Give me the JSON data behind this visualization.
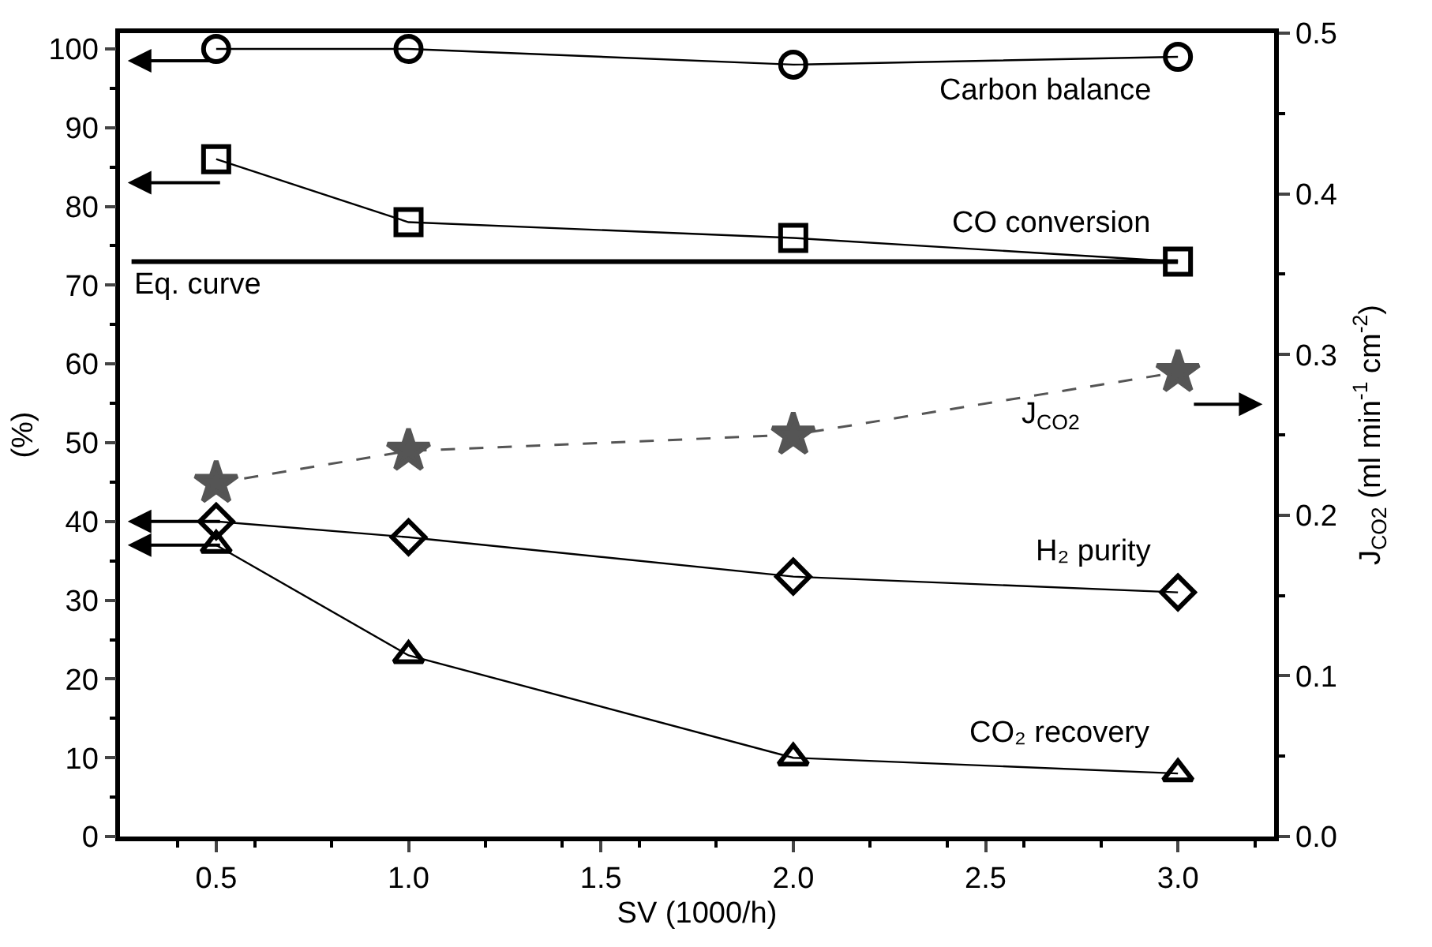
{
  "chart_data": {
    "type": "line",
    "xlabel": "SV (1000/h)",
    "ylabel": "(%)",
    "y2label": "J$_{CO2}$ (ml min$^{-1}$ cm$^{-2}$)",
    "x": [
      0.5,
      1.0,
      2.0,
      3.0
    ],
    "series": [
      {
        "name": "Carbon balance",
        "color": "#000000",
        "marker": "circle",
        "line_style": "solid",
        "values": [
          100,
          100,
          98,
          99
        ]
      },
      {
        "name": "CO conversion",
        "color": "#000000",
        "marker": "square",
        "line_style": "solid",
        "values": [
          86,
          78,
          76,
          73
        ]
      },
      {
        "name": "J$_{CO2}$",
        "color": "#555555",
        "marker": "star",
        "line_style": "dashed",
        "axis": "y2",
        "values": [
          0.22,
          0.24,
          0.25,
          0.289
        ]
      },
      {
        "name": "H₂ purity",
        "color": "#000000",
        "marker": "diamond",
        "line_style": "solid",
        "values": [
          40,
          38,
          33,
          31
        ]
      },
      {
        "name": "CO₂ recovery",
        "color": "#000000",
        "marker": "triangle",
        "line_style": "solid",
        "values": [
          37,
          23,
          10,
          8
        ]
      }
    ],
    "ref_lines": [
      {
        "axis": "y",
        "value": 73,
        "label": "Eq. curve",
        "color": "#000000",
        "line_style": "solid"
      }
    ],
    "xlim": [
      0.25,
      3.25
    ],
    "xticks": [
      {
        "value": 0.5,
        "label": "0.5"
      },
      {
        "value": 1.0,
        "label": "1.0"
      },
      {
        "value": 1.5,
        "label": "1.5"
      },
      {
        "value": 2.0,
        "label": "2.0"
      },
      {
        "value": 2.5,
        "label": "2.5"
      },
      {
        "value": 3.0,
        "label": "3.0"
      }
    ],
    "ylim": [
      0,
      102
    ],
    "yticks": [
      0,
      10,
      20,
      30,
      40,
      50,
      60,
      70,
      80,
      90,
      100
    ],
    "y2lim": [
      0,
      0.5
    ],
    "y2ticks": [
      {
        "value": 0,
        "label": "0.0"
      },
      0.1,
      0.2,
      0.3,
      0.4,
      0.5
    ],
    "legend": false
  }
}
